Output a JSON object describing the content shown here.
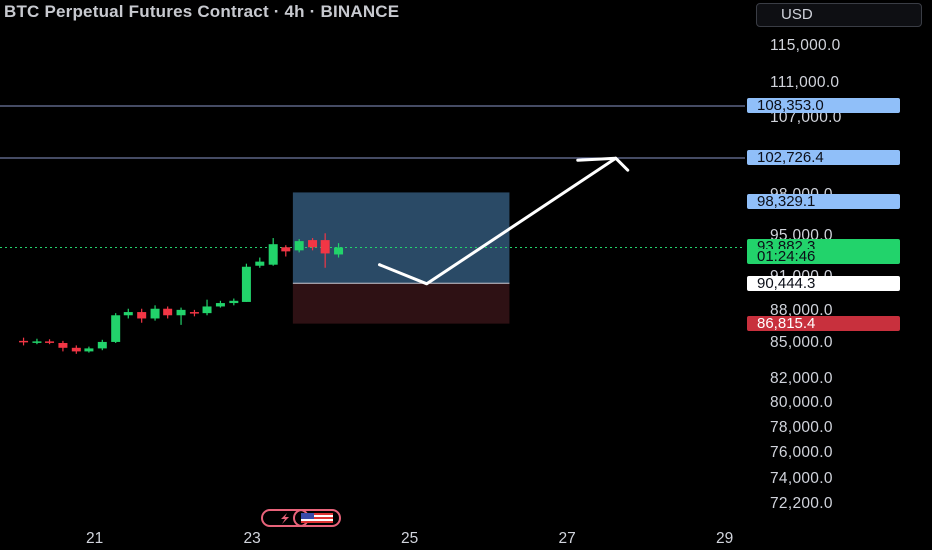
{
  "header": {
    "title": "BTC Perpetual Futures Contract · 4h · BINANCE",
    "currency": "USD"
  },
  "y_axis": {
    "ticks": [
      {
        "label": "115,000.0",
        "value": 115000
      },
      {
        "label": "111,000.0",
        "value": 111000
      },
      {
        "label": "107,000.0",
        "value": 107000
      },
      {
        "label": "98,000.0",
        "value": 98000
      },
      {
        "label": "95,000.0",
        "value": 95000
      },
      {
        "label": "91,000.0",
        "value": 91000
      },
      {
        "label": "88,000.0",
        "value": 88000
      },
      {
        "label": "85,000.0",
        "value": 85000
      },
      {
        "label": "82,000.0",
        "value": 82000
      },
      {
        "label": "80,000.0",
        "value": 80000
      },
      {
        "label": "78,000.0",
        "value": 78000
      },
      {
        "label": "76,000.0",
        "value": 76000
      },
      {
        "label": "74,000.0",
        "value": 74000
      },
      {
        "label": "72,200.0",
        "value": 72200
      }
    ]
  },
  "x_axis": {
    "ticks": [
      {
        "label": "21",
        "value": 21
      },
      {
        "label": "23",
        "value": 23
      },
      {
        "label": "25",
        "value": 25
      },
      {
        "label": "27",
        "value": 27
      },
      {
        "label": "29",
        "value": 29
      }
    ]
  },
  "price_labels": [
    {
      "name": "level-108353",
      "text": "108,353.0",
      "bg": "#90bff9",
      "fg": "#0b0e17"
    },
    {
      "name": "level-102726",
      "text": "102,726.4",
      "bg": "#90bff9",
      "fg": "#0b0e17"
    },
    {
      "name": "target-price",
      "text": "98,329.1",
      "bg": "#90bff9",
      "fg": "#0b0e17"
    },
    {
      "name": "last-price",
      "text": "93,882.3",
      "bg": "#22d36b",
      "fg": "#0b0e17"
    },
    {
      "name": "countdown",
      "text": "01:24:46",
      "bg": "#22d36b",
      "fg": "#0b0e17"
    },
    {
      "name": "entry-price",
      "text": "90,444.3",
      "bg": "#ffffff",
      "fg": "#0b0e17"
    },
    {
      "name": "stop-price",
      "text": "86,815.4",
      "bg": "#c8303d",
      "fg": "#ffffff"
    }
  ],
  "colors": {
    "up": "#22d36b",
    "down": "#f23645",
    "hline": "#8a96c8",
    "profit_zone": "#2a4a66",
    "loss_zone": "#2e1114",
    "current_price_line": "#22d36b"
  },
  "events": [
    {
      "name": "lightning-event-icon",
      "date": 23.4
    },
    {
      "name": "us-flag-event-icon",
      "date": 23.8
    }
  ],
  "chart_data": {
    "type": "candlestick",
    "symbol": "BTC Perpetual Futures Contract",
    "interval": "4h",
    "horizontal_lines": [
      108353.0,
      102726.4
    ],
    "position": {
      "side": "long",
      "entry": 90444.3,
      "target": 98329.1,
      "stop": 86815.4
    },
    "arrow_path": [
      [
        24.6,
        92200
      ],
      [
        25.2,
        90400
      ],
      [
        27.6,
        102700
      ]
    ],
    "last_price": 93882.3,
    "candles": [
      {
        "x": 20.08,
        "o": 85200,
        "c": 85100,
        "h": 85500,
        "l": 84800
      },
      {
        "x": 20.25,
        "o": 85100,
        "c": 85150,
        "h": 85400,
        "l": 84900
      },
      {
        "x": 20.41,
        "o": 85150,
        "c": 85050,
        "h": 85350,
        "l": 84900
      },
      {
        "x": 20.58,
        "o": 85000,
        "c": 84600,
        "h": 85200,
        "l": 84300
      },
      {
        "x": 20.75,
        "o": 84600,
        "c": 84300,
        "h": 84800,
        "l": 84100
      },
      {
        "x": 20.91,
        "o": 84300,
        "c": 84550,
        "h": 84700,
        "l": 84200
      },
      {
        "x": 21.08,
        "o": 84550,
        "c": 85100,
        "h": 85300,
        "l": 84400
      },
      {
        "x": 21.25,
        "o": 85100,
        "c": 87600,
        "h": 87800,
        "l": 85000
      },
      {
        "x": 21.41,
        "o": 87600,
        "c": 87900,
        "h": 88200,
        "l": 87300
      },
      {
        "x": 21.58,
        "o": 87900,
        "c": 87300,
        "h": 88200,
        "l": 86900
      },
      {
        "x": 21.75,
        "o": 87300,
        "c": 88200,
        "h": 88500,
        "l": 87100
      },
      {
        "x": 21.91,
        "o": 88200,
        "c": 87600,
        "h": 88400,
        "l": 87300
      },
      {
        "x": 22.08,
        "o": 87600,
        "c": 88100,
        "h": 88300,
        "l": 86700
      },
      {
        "x": 22.25,
        "o": 87900,
        "c": 87800,
        "h": 88100,
        "l": 87500
      },
      {
        "x": 22.41,
        "o": 87800,
        "c": 88400,
        "h": 89000,
        "l": 87600
      },
      {
        "x": 22.58,
        "o": 88400,
        "c": 88700,
        "h": 88900,
        "l": 88300
      },
      {
        "x": 22.75,
        "o": 88700,
        "c": 88900,
        "h": 89100,
        "l": 88500
      },
      {
        "x": 22.91,
        "o": 88800,
        "c": 92000,
        "h": 92300,
        "l": 88800
      },
      {
        "x": 23.08,
        "o": 92100,
        "c": 92500,
        "h": 92900,
        "l": 91900
      },
      {
        "x": 23.25,
        "o": 92200,
        "c": 94200,
        "h": 94800,
        "l": 92100
      },
      {
        "x": 23.41,
        "o": 93900,
        "c": 93500,
        "h": 94100,
        "l": 93000
      },
      {
        "x": 23.58,
        "o": 93600,
        "c": 94500,
        "h": 94700,
        "l": 93400
      },
      {
        "x": 23.75,
        "o": 94600,
        "c": 93900,
        "h": 94800,
        "l": 93600
      },
      {
        "x": 23.91,
        "o": 94600,
        "c": 93300,
        "h": 95200,
        "l": 91900
      },
      {
        "x": 24.08,
        "o": 93200,
        "c": 93882.3,
        "h": 94300,
        "l": 92900
      }
    ]
  }
}
